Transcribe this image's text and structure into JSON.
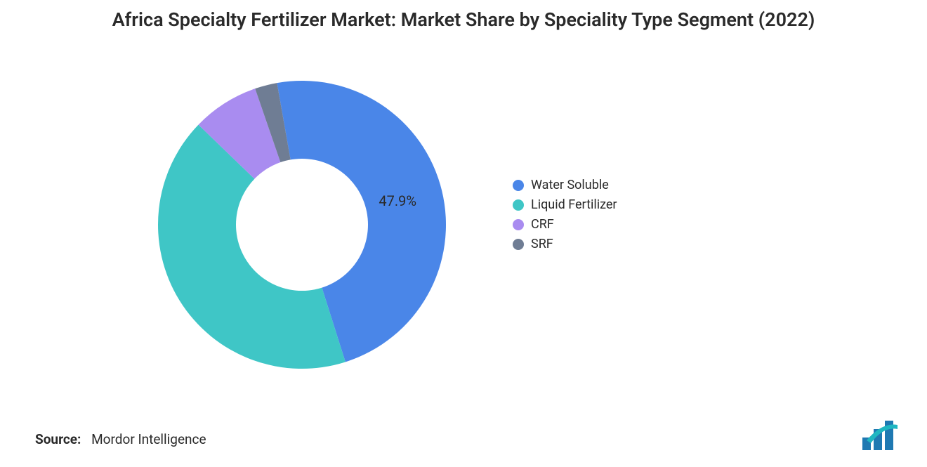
{
  "title": "Africa Specialty Fertilizer Market: Market Share by Speciality Type Segment (2022)",
  "chart": {
    "type": "donut",
    "start_angle_deg": -100,
    "inner_radius_ratio": 0.45,
    "background_color": "#ffffff",
    "title_color": "#2a2a2a",
    "title_fontsize": 27,
    "slice_label_fontsize": 20,
    "legend_fontsize": 18,
    "segments": [
      {
        "name": "Water Soluble",
        "value": 47.9,
        "color": "#4a86e8",
        "label": "47.9%",
        "show_label": true
      },
      {
        "name": "Liquid Fertilizer",
        "value": 42.1,
        "color": "#3fc6c6",
        "label": "",
        "show_label": false
      },
      {
        "name": "CRF",
        "value": 7.5,
        "color": "#a98cf0",
        "label": "",
        "show_label": false
      },
      {
        "name": "SRF",
        "value": 2.5,
        "color": "#6f7d94",
        "label": "",
        "show_label": false
      }
    ]
  },
  "legend": {
    "items": [
      {
        "label": "Water Soluble",
        "color": "#4a86e8"
      },
      {
        "label": "Liquid Fertilizer",
        "color": "#3fc6c6"
      },
      {
        "label": "CRF",
        "color": "#a98cf0"
      },
      {
        "label": "SRF",
        "color": "#6f7d94"
      }
    ]
  },
  "source": {
    "prefix": "Source:",
    "text": "Mordor Intelligence"
  },
  "logo": {
    "bar_color": "#1f79b2",
    "accent_color": "#1fb6c1"
  }
}
